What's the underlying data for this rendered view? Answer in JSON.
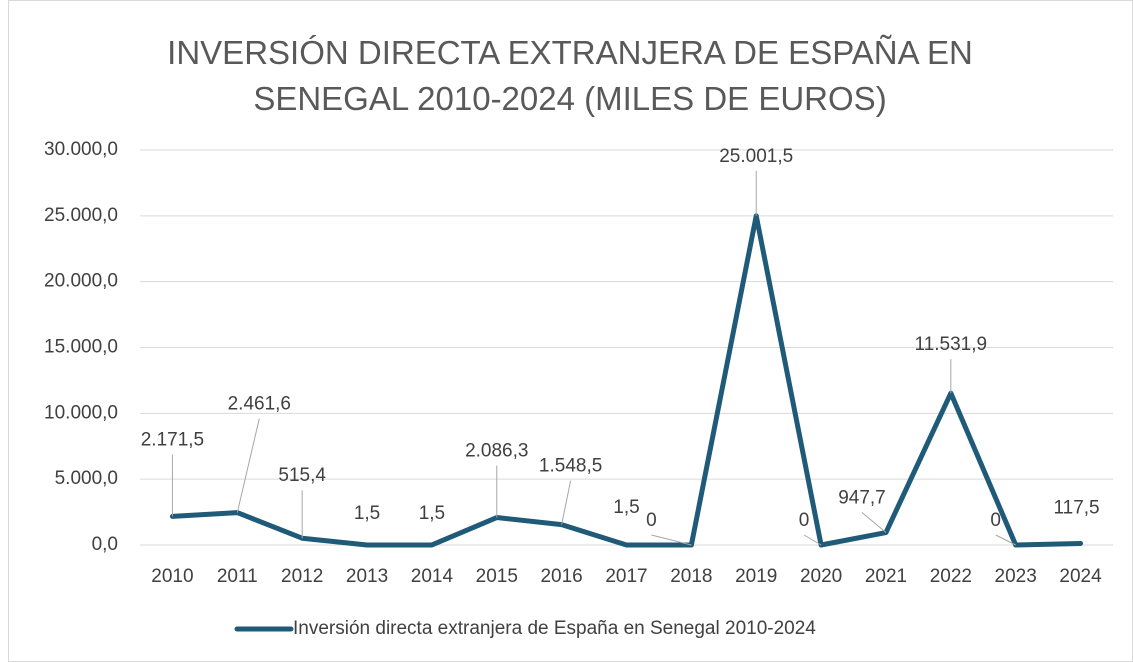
{
  "chart_data": {
    "type": "line",
    "title": "INVERSIÓN DIRECTA EXTRANJERA DE ESPAÑA EN SENEGAL 2010-2024 (MILES DE EUROS)",
    "categories": [
      "2010",
      "2011",
      "2012",
      "2013",
      "2014",
      "2015",
      "2016",
      "2017",
      "2018",
      "2019",
      "2020",
      "2021",
      "2022",
      "2023",
      "2024"
    ],
    "series": [
      {
        "name": "Inversión directa extranjera de España en Senegal 2010-2024",
        "color": "#1f5b78",
        "values": [
          2171.5,
          2461.6,
          515.4,
          1.5,
          1.5,
          2086.3,
          1548.5,
          1.5,
          0,
          25001.5,
          0,
          947.7,
          11531.9,
          0,
          117.5
        ],
        "value_labels": [
          "2.171,5",
          "2.461,6",
          "515,4",
          "1,5",
          "1,5",
          "2.086,3",
          "1.548,5",
          "1,5",
          "0",
          "25.001,5",
          "0",
          "947,7",
          "11.531,9",
          "0",
          "117,5"
        ]
      }
    ],
    "ylim": [
      0,
      30000
    ],
    "yticks": [
      {
        "value": 0,
        "label": "0,0"
      },
      {
        "value": 5000,
        "label": "5.000,0"
      },
      {
        "value": 10000,
        "label": "10.000,0"
      },
      {
        "value": 15000,
        "label": "15.000,0"
      },
      {
        "value": 20000,
        "label": "20.000,0"
      },
      {
        "value": 25000,
        "label": "25.000,0"
      },
      {
        "value": 30000,
        "label": "30.000,0"
      }
    ],
    "grid": true,
    "legend": "bottom"
  }
}
